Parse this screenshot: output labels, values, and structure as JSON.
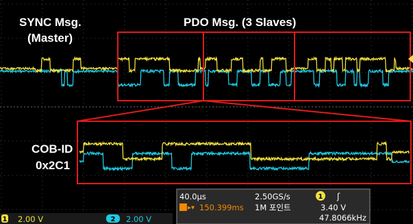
{
  "annotations": {
    "sync_title": "SYNC Msg.",
    "sync_sub": "(Master)",
    "pdo_title": "PDO Msg. (3 Slaves)",
    "cob_title": "COB-ID",
    "cob_value": "0x2C1"
  },
  "status": {
    "timebase": "40.0µs",
    "sample_rate": "2.50GS/s",
    "trigger_position": "150.399ms",
    "record_length": "1M 포인트",
    "trigger_channel": "1",
    "trigger_level": "3.40 V",
    "frequency": "47.8066kHz"
  },
  "channels": [
    {
      "number": "1",
      "scale": "2.00 V"
    },
    {
      "number": "2",
      "scale": "2.00 V"
    }
  ]
}
